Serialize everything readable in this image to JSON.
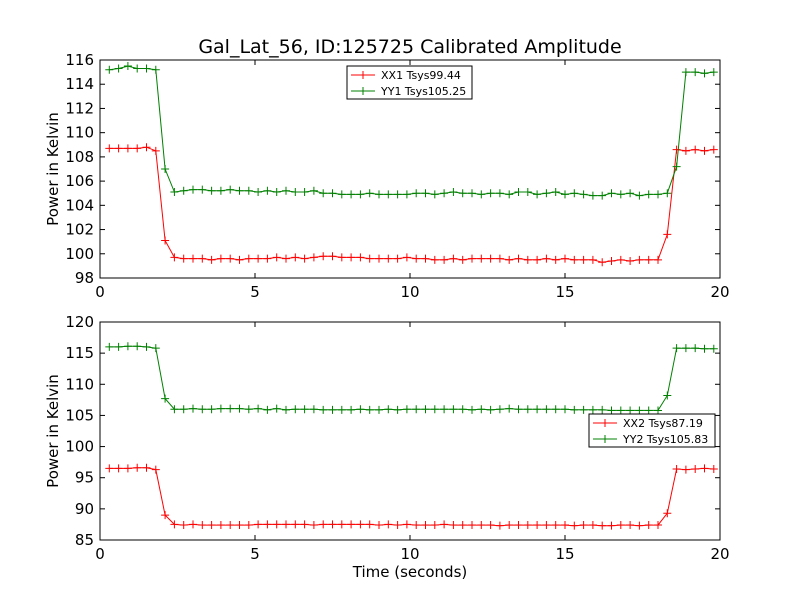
{
  "title": "Gal_Lat_56, ID:125725 Calibrated Amplitude",
  "colors": {
    "xx": "#ff0000",
    "yy": "#008000"
  },
  "chart_data": [
    {
      "type": "line",
      "ylabel": "Power in Kelvin",
      "xlabel": "",
      "xlim": [
        0,
        20
      ],
      "ylim": [
        98,
        116
      ],
      "xticks": [
        0,
        5,
        10,
        15,
        20
      ],
      "yticks": [
        98,
        100,
        102,
        104,
        106,
        108,
        110,
        112,
        114,
        116
      ],
      "legend_position": "upper center",
      "x": [
        0.3,
        0.6,
        0.9,
        1.2,
        1.5,
        1.8,
        2.1,
        2.4,
        2.7,
        3.0,
        3.3,
        3.6,
        3.9,
        4.2,
        4.5,
        4.8,
        5.1,
        5.4,
        5.7,
        6.0,
        6.3,
        6.6,
        6.9,
        7.2,
        7.5,
        7.8,
        8.1,
        8.4,
        8.7,
        9.0,
        9.3,
        9.6,
        9.9,
        10.2,
        10.5,
        10.8,
        11.1,
        11.4,
        11.7,
        12.0,
        12.3,
        12.6,
        12.9,
        13.2,
        13.5,
        13.8,
        14.1,
        14.4,
        14.7,
        15.0,
        15.3,
        15.6,
        15.9,
        16.2,
        16.5,
        16.8,
        17.1,
        17.4,
        17.7,
        18.0,
        18.3,
        18.6,
        18.9,
        19.2,
        19.5,
        19.8
      ],
      "series": [
        {
          "name": "XX1 Tsys99.44",
          "color": "#ff0000",
          "values": [
            108.7,
            108.7,
            108.7,
            108.7,
            108.8,
            108.5,
            101.1,
            99.7,
            99.6,
            99.6,
            99.6,
            99.5,
            99.6,
            99.6,
            99.5,
            99.6,
            99.6,
            99.6,
            99.7,
            99.6,
            99.7,
            99.6,
            99.7,
            99.8,
            99.8,
            99.7,
            99.7,
            99.7,
            99.6,
            99.6,
            99.6,
            99.6,
            99.7,
            99.6,
            99.6,
            99.5,
            99.5,
            99.6,
            99.5,
            99.6,
            99.6,
            99.6,
            99.6,
            99.5,
            99.6,
            99.5,
            99.5,
            99.6,
            99.5,
            99.6,
            99.5,
            99.5,
            99.5,
            99.3,
            99.4,
            99.5,
            99.4,
            99.5,
            99.5,
            99.5,
            101.6,
            108.6,
            108.5,
            108.6,
            108.5,
            108.6
          ]
        },
        {
          "name": "YY1 Tsys105.25",
          "color": "#008000",
          "values": [
            115.2,
            115.3,
            115.5,
            115.3,
            115.3,
            115.2,
            107.0,
            105.1,
            105.2,
            105.3,
            105.3,
            105.2,
            105.2,
            105.3,
            105.2,
            105.2,
            105.1,
            105.2,
            105.1,
            105.2,
            105.1,
            105.1,
            105.2,
            105.0,
            105.0,
            104.9,
            104.9,
            104.9,
            105.0,
            104.9,
            104.9,
            104.9,
            104.9,
            105.0,
            105.0,
            104.9,
            105.0,
            105.1,
            105.0,
            105.0,
            104.9,
            105.0,
            105.0,
            104.9,
            105.1,
            105.1,
            104.9,
            105.0,
            105.1,
            104.9,
            105.0,
            104.9,
            104.8,
            104.8,
            105.0,
            104.9,
            105.0,
            104.8,
            104.9,
            104.9,
            105.0,
            107.2,
            115.0,
            115.0,
            114.9,
            115.0
          ]
        }
      ]
    },
    {
      "type": "line",
      "ylabel": "Power in Kelvin",
      "xlabel": "Time (seconds)",
      "xlim": [
        0,
        20
      ],
      "ylim": [
        85,
        120
      ],
      "xticks": [
        0,
        5,
        10,
        15,
        20
      ],
      "yticks": [
        85,
        90,
        95,
        100,
        105,
        110,
        115,
        120
      ],
      "legend_position": "center right",
      "x": [
        0.3,
        0.6,
        0.9,
        1.2,
        1.5,
        1.8,
        2.1,
        2.4,
        2.7,
        3.0,
        3.3,
        3.6,
        3.9,
        4.2,
        4.5,
        4.8,
        5.1,
        5.4,
        5.7,
        6.0,
        6.3,
        6.6,
        6.9,
        7.2,
        7.5,
        7.8,
        8.1,
        8.4,
        8.7,
        9.0,
        9.3,
        9.6,
        9.9,
        10.2,
        10.5,
        10.8,
        11.1,
        11.4,
        11.7,
        12.0,
        12.3,
        12.6,
        12.9,
        13.2,
        13.5,
        13.8,
        14.1,
        14.4,
        14.7,
        15.0,
        15.3,
        15.6,
        15.9,
        16.2,
        16.5,
        16.8,
        17.1,
        17.4,
        17.7,
        18.0,
        18.3,
        18.6,
        18.9,
        19.2,
        19.5,
        19.8
      ],
      "series": [
        {
          "name": "XX2 Tsys87.19",
          "color": "#ff0000",
          "values": [
            96.5,
            96.5,
            96.5,
            96.6,
            96.6,
            96.3,
            89.0,
            87.5,
            87.4,
            87.5,
            87.4,
            87.4,
            87.4,
            87.4,
            87.4,
            87.4,
            87.5,
            87.5,
            87.5,
            87.5,
            87.5,
            87.5,
            87.4,
            87.5,
            87.5,
            87.5,
            87.5,
            87.5,
            87.5,
            87.4,
            87.5,
            87.4,
            87.5,
            87.4,
            87.4,
            87.4,
            87.5,
            87.4,
            87.4,
            87.4,
            87.4,
            87.4,
            87.3,
            87.4,
            87.4,
            87.4,
            87.4,
            87.4,
            87.4,
            87.4,
            87.3,
            87.4,
            87.4,
            87.3,
            87.3,
            87.4,
            87.4,
            87.3,
            87.4,
            87.4,
            89.3,
            96.4,
            96.3,
            96.4,
            96.5,
            96.4
          ]
        },
        {
          "name": "YY2 Tsys105.83",
          "color": "#008000",
          "values": [
            116.0,
            116.0,
            116.1,
            116.1,
            116.0,
            115.8,
            107.7,
            106.0,
            106.0,
            106.1,
            106.0,
            106.0,
            106.1,
            106.1,
            106.1,
            106.0,
            106.1,
            105.9,
            106.1,
            105.9,
            106.0,
            106.0,
            106.0,
            105.9,
            105.9,
            105.9,
            105.9,
            106.0,
            105.9,
            105.9,
            106.0,
            105.9,
            106.0,
            106.0,
            106.0,
            106.0,
            106.0,
            106.0,
            106.0,
            105.9,
            106.0,
            105.9,
            106.0,
            106.1,
            106.0,
            106.0,
            106.0,
            106.0,
            106.0,
            106.0,
            105.9,
            105.9,
            105.9,
            105.9,
            105.8,
            105.8,
            105.8,
            105.8,
            105.8,
            105.8,
            108.2,
            115.8,
            115.8,
            115.8,
            115.7,
            115.7
          ]
        }
      ]
    }
  ]
}
